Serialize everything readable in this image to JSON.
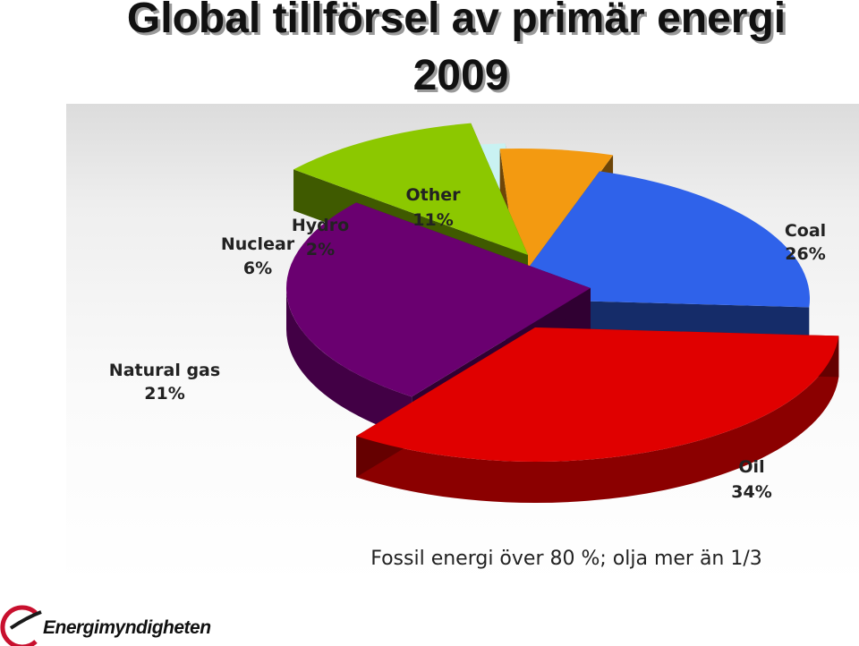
{
  "header": {
    "title_line1": "Global tillförsel av primär energi",
    "title_line2": "2009"
  },
  "chart_data": {
    "type": "pie",
    "style": "3d-exploded",
    "slices": [
      {
        "name": "Oil",
        "value": 34,
        "label": "34%",
        "color": "#e00000"
      },
      {
        "name": "Coal",
        "value": 26,
        "label": "26%",
        "color": "#6a0070"
      },
      {
        "name": "Other",
        "value": 11,
        "label": "11%",
        "color": "#8cc800"
      },
      {
        "name": "Hydro",
        "value": 2,
        "label": "2%",
        "color": "#c9f2f2"
      },
      {
        "name": "Nuclear",
        "value": 6,
        "label": "6%",
        "color": "#f39a11"
      },
      {
        "name": "Natural gas",
        "value": 21,
        "label": "21%",
        "color": "#2f62ea"
      }
    ],
    "footnote": "Fossil energi över 80 %; olja mer än 1/3"
  },
  "footer": {
    "logo_text": "Energimyndigheten",
    "logo_color": "#c8102e"
  }
}
